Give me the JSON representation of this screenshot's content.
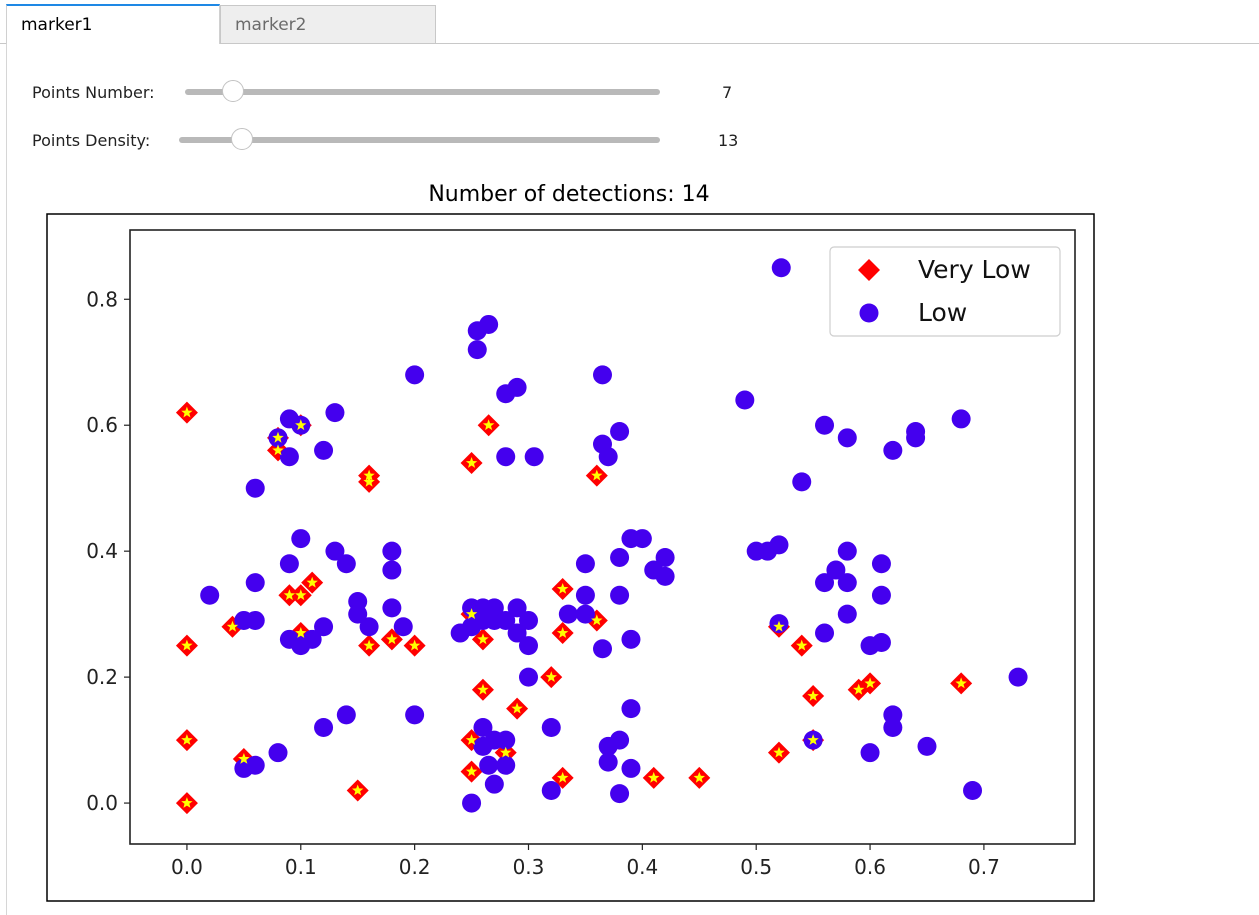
{
  "tabs": [
    {
      "label": "marker1",
      "active": true
    },
    {
      "label": "marker2",
      "active": false
    }
  ],
  "controls": {
    "points_number": {
      "label": "Points Number:",
      "value": "7",
      "fraction": 0.1
    },
    "points_density": {
      "label": "Points Density:",
      "value": "13",
      "fraction": 0.13
    }
  },
  "colors": {
    "accent": "#1e88e5",
    "very_low": "#ff0000",
    "low": "#4400ee",
    "star": "#ffff00"
  },
  "chart_data": {
    "type": "scatter",
    "title": "Number of detections: 14",
    "xlim": [
      -0.05,
      0.78
    ],
    "ylim": [
      -0.065,
      0.91
    ],
    "x_ticks": [
      "0.0",
      "0.1",
      "0.2",
      "0.3",
      "0.4",
      "0.5",
      "0.6",
      "0.7"
    ],
    "y_ticks": [
      "0.0",
      "0.2",
      "0.4",
      "0.6",
      "0.8"
    ],
    "legend_position": "top-right",
    "series": [
      {
        "name": "Very Low",
        "marker": "diamond",
        "color": "#ff0000",
        "points": [
          [
            0.0,
            0.62
          ],
          [
            0.0,
            0.25
          ],
          [
            0.0,
            0.1
          ],
          [
            0.0,
            0.0
          ],
          [
            0.04,
            0.28
          ],
          [
            0.05,
            0.07
          ],
          [
            0.08,
            0.56
          ],
          [
            0.08,
            0.58
          ],
          [
            0.09,
            0.33
          ],
          [
            0.1,
            0.33
          ],
          [
            0.1,
            0.6
          ],
          [
            0.1,
            0.27
          ],
          [
            0.11,
            0.35
          ],
          [
            0.15,
            0.02
          ],
          [
            0.16,
            0.51
          ],
          [
            0.16,
            0.52
          ],
          [
            0.16,
            0.25
          ],
          [
            0.18,
            0.26
          ],
          [
            0.2,
            0.25
          ],
          [
            0.25,
            0.54
          ],
          [
            0.25,
            0.3
          ],
          [
            0.25,
            0.1
          ],
          [
            0.25,
            0.05
          ],
          [
            0.26,
            0.18
          ],
          [
            0.26,
            0.26
          ],
          [
            0.265,
            0.6
          ],
          [
            0.28,
            0.08
          ],
          [
            0.29,
            0.15
          ],
          [
            0.32,
            0.2
          ],
          [
            0.33,
            0.34
          ],
          [
            0.33,
            0.27
          ],
          [
            0.33,
            0.04
          ],
          [
            0.36,
            0.52
          ],
          [
            0.36,
            0.29
          ],
          [
            0.41,
            0.04
          ],
          [
            0.45,
            0.04
          ],
          [
            0.52,
            0.28
          ],
          [
            0.52,
            0.08
          ],
          [
            0.54,
            0.25
          ],
          [
            0.55,
            0.17
          ],
          [
            0.55,
            0.1
          ],
          [
            0.59,
            0.18
          ],
          [
            0.6,
            0.19
          ],
          [
            0.68,
            0.19
          ]
        ]
      },
      {
        "name": "Low",
        "marker": "circle",
        "color": "#4400ee",
        "points": [
          [
            0.02,
            0.33
          ],
          [
            0.05,
            0.29
          ],
          [
            0.05,
            0.055
          ],
          [
            0.06,
            0.5
          ],
          [
            0.06,
            0.35
          ],
          [
            0.06,
            0.29
          ],
          [
            0.06,
            0.06
          ],
          [
            0.08,
            0.58
          ],
          [
            0.08,
            0.08
          ],
          [
            0.09,
            0.61
          ],
          [
            0.09,
            0.55
          ],
          [
            0.09,
            0.38
          ],
          [
            0.09,
            0.26
          ],
          [
            0.1,
            0.6
          ],
          [
            0.1,
            0.42
          ],
          [
            0.1,
            0.25
          ],
          [
            0.11,
            0.26
          ],
          [
            0.12,
            0.56
          ],
          [
            0.12,
            0.28
          ],
          [
            0.12,
            0.12
          ],
          [
            0.13,
            0.62
          ],
          [
            0.13,
            0.4
          ],
          [
            0.14,
            0.38
          ],
          [
            0.14,
            0.14
          ],
          [
            0.15,
            0.32
          ],
          [
            0.15,
            0.3
          ],
          [
            0.16,
            0.28
          ],
          [
            0.18,
            0.4
          ],
          [
            0.18,
            0.37
          ],
          [
            0.18,
            0.31
          ],
          [
            0.19,
            0.28
          ],
          [
            0.2,
            0.68
          ],
          [
            0.2,
            0.14
          ],
          [
            0.24,
            0.27
          ],
          [
            0.25,
            0.28
          ],
          [
            0.25,
            0.31
          ],
          [
            0.25,
            0.0
          ],
          [
            0.255,
            0.75
          ],
          [
            0.255,
            0.72
          ],
          [
            0.26,
            0.29
          ],
          [
            0.26,
            0.31
          ],
          [
            0.26,
            0.12
          ],
          [
            0.26,
            0.09
          ],
          [
            0.265,
            0.76
          ],
          [
            0.265,
            0.06
          ],
          [
            0.27,
            0.29
          ],
          [
            0.27,
            0.31
          ],
          [
            0.27,
            0.03
          ],
          [
            0.27,
            0.1
          ],
          [
            0.28,
            0.65
          ],
          [
            0.28,
            0.55
          ],
          [
            0.28,
            0.29
          ],
          [
            0.28,
            0.1
          ],
          [
            0.28,
            0.06
          ],
          [
            0.29,
            0.66
          ],
          [
            0.29,
            0.31
          ],
          [
            0.29,
            0.27
          ],
          [
            0.3,
            0.29
          ],
          [
            0.3,
            0.25
          ],
          [
            0.3,
            0.2
          ],
          [
            0.305,
            0.55
          ],
          [
            0.32,
            0.12
          ],
          [
            0.32,
            0.02
          ],
          [
            0.335,
            0.3
          ],
          [
            0.35,
            0.38
          ],
          [
            0.35,
            0.33
          ],
          [
            0.35,
            0.3
          ],
          [
            0.365,
            0.68
          ],
          [
            0.365,
            0.57
          ],
          [
            0.365,
            0.245
          ],
          [
            0.37,
            0.55
          ],
          [
            0.37,
            0.09
          ],
          [
            0.37,
            0.065
          ],
          [
            0.38,
            0.59
          ],
          [
            0.38,
            0.39
          ],
          [
            0.38,
            0.33
          ],
          [
            0.38,
            0.1
          ],
          [
            0.38,
            0.015
          ],
          [
            0.39,
            0.42
          ],
          [
            0.39,
            0.26
          ],
          [
            0.39,
            0.15
          ],
          [
            0.39,
            0.055
          ],
          [
            0.4,
            0.42
          ],
          [
            0.41,
            0.37
          ],
          [
            0.42,
            0.39
          ],
          [
            0.42,
            0.36
          ],
          [
            0.49,
            0.64
          ],
          [
            0.5,
            0.4
          ],
          [
            0.51,
            0.4
          ],
          [
            0.52,
            0.41
          ],
          [
            0.52,
            0.285
          ],
          [
            0.522,
            0.85
          ],
          [
            0.54,
            0.51
          ],
          [
            0.55,
            0.1
          ],
          [
            0.56,
            0.6
          ],
          [
            0.56,
            0.35
          ],
          [
            0.56,
            0.27
          ],
          [
            0.57,
            0.37
          ],
          [
            0.58,
            0.58
          ],
          [
            0.58,
            0.4
          ],
          [
            0.58,
            0.35
          ],
          [
            0.58,
            0.3
          ],
          [
            0.6,
            0.25
          ],
          [
            0.6,
            0.08
          ],
          [
            0.61,
            0.38
          ],
          [
            0.61,
            0.33
          ],
          [
            0.61,
            0.255
          ],
          [
            0.62,
            0.56
          ],
          [
            0.62,
            0.14
          ],
          [
            0.62,
            0.12
          ],
          [
            0.64,
            0.59
          ],
          [
            0.64,
            0.58
          ],
          [
            0.65,
            0.09
          ],
          [
            0.68,
            0.61
          ],
          [
            0.69,
            0.02
          ],
          [
            0.73,
            0.2
          ]
        ]
      }
    ]
  }
}
